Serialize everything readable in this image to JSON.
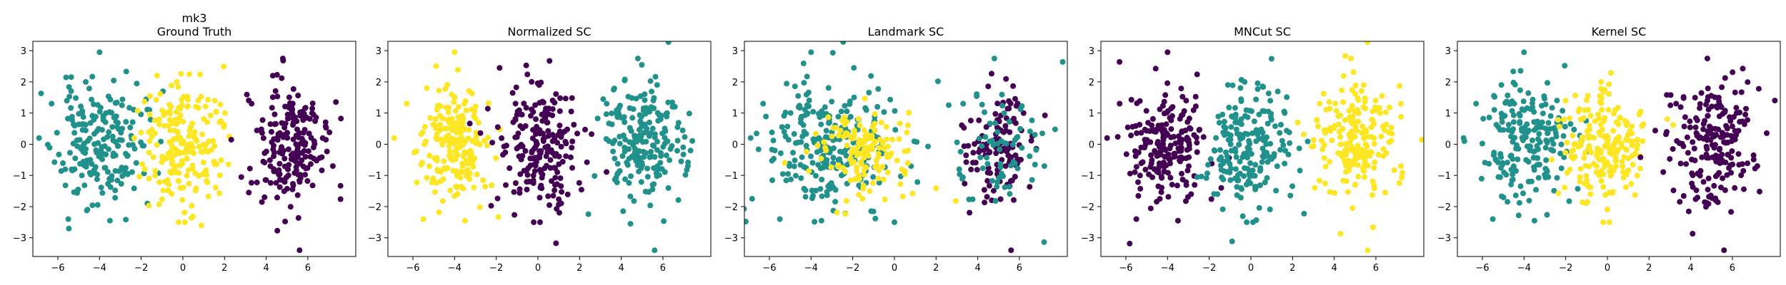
{
  "figure": {
    "colors": {
      "cluster0": "#440154",
      "cluster1": "#21918c",
      "cluster2": "#fde725"
    }
  },
  "chart_data": [
    {
      "type": "scatter",
      "title": [
        "mk3",
        "Ground Truth"
      ],
      "xlabel": "",
      "ylabel": "",
      "xlim": [
        -7.2,
        8.3
      ],
      "ylim": [
        -3.6,
        3.3
      ],
      "xticks": [
        -6,
        -4,
        -2,
        0,
        2,
        4,
        6
      ],
      "yticks": [
        -3,
        -2,
        -1,
        0,
        1,
        2,
        3
      ],
      "grid": false,
      "clusters": [
        {
          "color": "#21918c",
          "center": [
            -4.0,
            0.0
          ],
          "spread": [
            1.05,
            0.95
          ],
          "count": 200,
          "seed": 11,
          "outliers": [
            [
              -4.0,
              2.95
            ],
            [
              -6.3,
              1.3
            ],
            [
              -3.5,
              -2.45
            ],
            [
              -6.9,
              0.2
            ],
            [
              -5.5,
              -2.4
            ]
          ]
        },
        {
          "color": "#fde725",
          "center": [
            0.0,
            0.0
          ],
          "spread": [
            0.95,
            0.95
          ],
          "count": 200,
          "seed": 12,
          "outliers": [
            [
              -0.2,
              -2.5
            ],
            [
              0.1,
              -2.5
            ],
            [
              1.6,
              1.05
            ],
            [
              -0.3,
              2.0
            ]
          ]
        },
        {
          "color": "#440154",
          "center": [
            5.0,
            0.0
          ],
          "spread": [
            1.0,
            1.0
          ],
          "count": 200,
          "seed": 13,
          "outliers": [
            [
              5.6,
              -3.4
            ],
            [
              7.2,
              -0.7
            ],
            [
              6.2,
              1.0
            ],
            [
              4.8,
              2.75
            ],
            [
              3.3,
              1.3
            ]
          ]
        }
      ]
    },
    {
      "type": "scatter",
      "title": [
        "Normalized SC"
      ],
      "xlabel": "",
      "ylabel": "",
      "xlim": [
        -7.2,
        8.3
      ],
      "ylim": [
        -3.6,
        3.3
      ],
      "xticks": [
        -6,
        -4,
        -2,
        0,
        2,
        4,
        6
      ],
      "yticks": [
        -3,
        -2,
        -1,
        0,
        1,
        2,
        3
      ],
      "grid": false,
      "clusters": [
        {
          "color": "#fde725",
          "center": [
            -4.0,
            0.0
          ],
          "spread": [
            0.85,
            0.95
          ],
          "count": 200,
          "seed": 21,
          "outliers": [
            [
              -4.0,
              2.95
            ],
            [
              -6.3,
              1.3
            ],
            [
              -3.5,
              -2.45
            ],
            [
              -6.9,
              0.2
            ],
            [
              -5.5,
              -2.4
            ]
          ]
        },
        {
          "color": "#440154",
          "center": [
            0.0,
            0.0
          ],
          "spread": [
            1.05,
            0.95
          ],
          "count": 200,
          "seed": 22,
          "outliers": [
            [
              -0.2,
              -2.5
            ],
            [
              0.1,
              -2.5
            ],
            [
              1.6,
              1.05
            ],
            [
              -0.3,
              2.0
            ]
          ]
        },
        {
          "color": "#21918c",
          "center": [
            5.0,
            0.0
          ],
          "spread": [
            1.0,
            1.0
          ],
          "count": 200,
          "seed": 23,
          "outliers": [
            [
              5.6,
              -3.4
            ],
            [
              7.2,
              -0.7
            ],
            [
              6.2,
              1.0
            ],
            [
              4.8,
              2.75
            ],
            [
              3.3,
              1.3
            ]
          ]
        }
      ]
    },
    {
      "type": "scatter",
      "title": [
        "Landmark SC"
      ],
      "xlabel": "",
      "ylabel": "",
      "xlim": [
        -7.2,
        8.3
      ],
      "ylim": [
        -3.6,
        3.3
      ],
      "xticks": [
        -6,
        -4,
        -2,
        0,
        2,
        4,
        6
      ],
      "yticks": [
        -3,
        -2,
        -1,
        0,
        1,
        2,
        3
      ],
      "grid": false,
      "clusters": [
        {
          "color": "#21918c",
          "center": [
            -3.0,
            0.0
          ],
          "spread": [
            1.6,
            1.05
          ],
          "count": 260,
          "seed": 31,
          "outliers": [
            [
              -4.0,
              2.95
            ],
            [
              -6.3,
              1.3
            ],
            [
              -3.5,
              -2.45
            ],
            [
              -6.9,
              0.2
            ],
            [
              -5.5,
              -2.4
            ],
            [
              0.0,
              -2.5
            ],
            [
              3.3,
              1.3
            ]
          ]
        },
        {
          "color": "#fde725",
          "center": [
            -1.5,
            -0.2
          ],
          "spread": [
            1.2,
            0.7
          ],
          "count": 140,
          "seed": 32,
          "outliers": []
        },
        {
          "color": "#440154",
          "center": [
            5.0,
            -0.1
          ],
          "spread": [
            0.8,
            0.9
          ],
          "count": 130,
          "seed": 33,
          "outliers": [
            [
              5.6,
              -3.4
            ],
            [
              6.2,
              1.0
            ]
          ]
        },
        {
          "color": "#21918c",
          "center": [
            5.0,
            0.0
          ],
          "spread": [
            1.2,
            1.1
          ],
          "count": 70,
          "seed": 34,
          "outliers": [
            [
              7.2,
              -0.7
            ],
            [
              4.8,
              2.75
            ]
          ]
        }
      ]
    },
    {
      "type": "scatter",
      "title": [
        "MNCut SC"
      ],
      "xlabel": "",
      "ylabel": "",
      "xlim": [
        -7.2,
        8.3
      ],
      "ylim": [
        -3.6,
        3.3
      ],
      "xticks": [
        -6,
        -4,
        -2,
        0,
        2,
        4,
        6
      ],
      "yticks": [
        -3,
        -2,
        -1,
        0,
        1,
        2,
        3
      ],
      "grid": false,
      "clusters": [
        {
          "color": "#440154",
          "center": [
            -4.0,
            0.0
          ],
          "spread": [
            0.9,
            0.95
          ],
          "count": 200,
          "seed": 41,
          "outliers": [
            [
              -4.0,
              2.95
            ],
            [
              -6.3,
              1.3
            ],
            [
              -3.5,
              -2.45
            ],
            [
              -6.9,
              0.2
            ],
            [
              -5.5,
              -2.4
            ]
          ]
        },
        {
          "color": "#21918c",
          "center": [
            -0.2,
            0.0
          ],
          "spread": [
            1.05,
            0.95
          ],
          "count": 200,
          "seed": 42,
          "outliers": [
            [
              -0.2,
              -2.5
            ],
            [
              0.1,
              -2.5
            ],
            [
              1.6,
              1.05
            ],
            [
              -0.3,
              2.0
            ]
          ]
        },
        {
          "color": "#fde725",
          "center": [
            5.0,
            0.0
          ],
          "spread": [
            0.95,
            1.0
          ],
          "count": 200,
          "seed": 43,
          "outliers": [
            [
              5.6,
              -3.4
            ],
            [
              7.2,
              -0.7
            ],
            [
              6.2,
              1.0
            ],
            [
              4.8,
              2.75
            ],
            [
              3.3,
              1.3
            ]
          ]
        }
      ]
    },
    {
      "type": "scatter",
      "title": [
        "Kernel SC"
      ],
      "xlabel": "",
      "ylabel": "",
      "xlim": [
        -7.2,
        8.3
      ],
      "ylim": [
        -3.6,
        3.3
      ],
      "xticks": [
        -6,
        -4,
        -2,
        0,
        2,
        4,
        6
      ],
      "yticks": [
        -3,
        -2,
        -1,
        0,
        1,
        2,
        3
      ],
      "grid": false,
      "clusters": [
        {
          "color": "#21918c",
          "center": [
            -4.0,
            0.0
          ],
          "spread": [
            1.05,
            0.95
          ],
          "count": 200,
          "seed": 51,
          "outliers": [
            [
              -4.0,
              2.95
            ],
            [
              -6.3,
              1.3
            ],
            [
              -3.5,
              -2.45
            ],
            [
              -6.9,
              0.2
            ],
            [
              -5.5,
              -2.4
            ]
          ]
        },
        {
          "color": "#fde725",
          "center": [
            0.0,
            0.0
          ],
          "spread": [
            0.95,
            0.95
          ],
          "count": 200,
          "seed": 52,
          "outliers": [
            [
              -0.2,
              -2.5
            ],
            [
              0.1,
              -2.5
            ],
            [
              1.6,
              1.05
            ],
            [
              -0.3,
              2.0
            ]
          ]
        },
        {
          "color": "#440154",
          "center": [
            5.0,
            0.0
          ],
          "spread": [
            1.0,
            1.0
          ],
          "count": 200,
          "seed": 53,
          "outliers": [
            [
              5.6,
              -3.4
            ],
            [
              7.2,
              -0.7
            ],
            [
              6.2,
              1.0
            ],
            [
              4.8,
              2.75
            ],
            [
              3.3,
              1.3
            ]
          ]
        }
      ]
    }
  ]
}
